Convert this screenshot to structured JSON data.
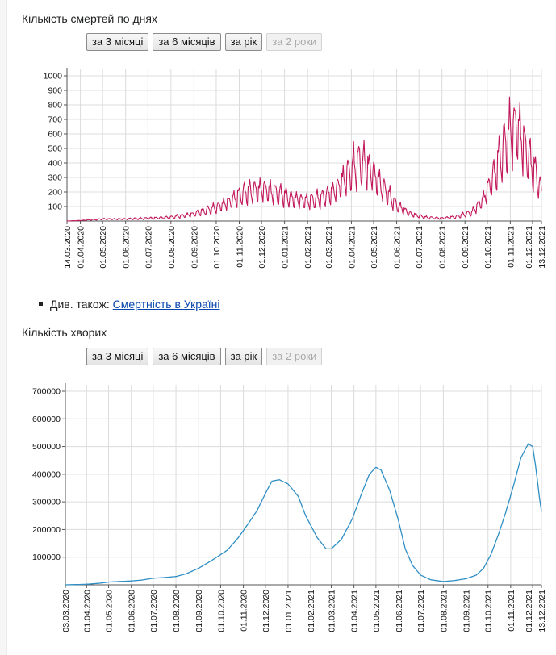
{
  "links": {
    "see_also_prefix": "Див. також:",
    "see_also_link": "Смертність в Україні"
  },
  "buttons": [
    "за 3 місяці",
    "за 6 місяців",
    "за рік",
    "за 2 роки"
  ],
  "colors": {
    "deaths": "#c2185b",
    "cases": "#2f8fc4",
    "grid": "#dcdcdc",
    "axis": "#555555"
  },
  "chart_data": [
    {
      "type": "line",
      "title": "Кількість смертей по днях",
      "ylim": [
        0,
        1000
      ],
      "yticks": [
        100,
        200,
        300,
        400,
        500,
        600,
        700,
        800,
        900,
        1000
      ],
      "date_start": "2020-03-14",
      "date_end": "2021-12-13",
      "xticks": [
        "14.03.2020",
        "01.04.2020",
        "01.05.2020",
        "01.06.2020",
        "01.07.2020",
        "01.08.2020",
        "01.09.2020",
        "01.10.2020",
        "01.11.2020",
        "01.12.2020",
        "01.01.2021",
        "01.02.2021",
        "01.03.2021",
        "01.04.2021",
        "01.05.2021",
        "01.06.2021",
        "01.07.2021",
        "01.08.2021",
        "01.09.2021",
        "01.10.2021",
        "01.11.2021",
        "01.12.2021",
        "13.12.2021"
      ],
      "trend": [
        [
          "2020-03-14",
          0
        ],
        [
          "2020-04-01",
          4
        ],
        [
          "2020-05-01",
          14
        ],
        [
          "2020-06-01",
          14
        ],
        [
          "2020-07-01",
          20
        ],
        [
          "2020-08-01",
          26
        ],
        [
          "2020-09-01",
          50
        ],
        [
          "2020-10-01",
          95
        ],
        [
          "2020-10-20",
          140
        ],
        [
          "2020-11-05",
          190
        ],
        [
          "2020-11-20",
          215
        ],
        [
          "2020-12-05",
          225
        ],
        [
          "2020-12-20",
          195
        ],
        [
          "2021-01-10",
          160
        ],
        [
          "2021-02-01",
          140
        ],
        [
          "2021-02-20",
          160
        ],
        [
          "2021-03-10",
          215
        ],
        [
          "2021-03-25",
          310
        ],
        [
          "2021-04-08",
          400
        ],
        [
          "2021-04-18",
          410
        ],
        [
          "2021-05-01",
          330
        ],
        [
          "2021-05-15",
          220
        ],
        [
          "2021-06-01",
          110
        ],
        [
          "2021-06-20",
          50
        ],
        [
          "2021-07-10",
          25
        ],
        [
          "2021-08-01",
          20
        ],
        [
          "2021-08-20",
          30
        ],
        [
          "2021-09-10",
          60
        ],
        [
          "2021-09-25",
          150
        ],
        [
          "2021-10-10",
          320
        ],
        [
          "2021-10-20",
          470
        ],
        [
          "2021-11-01",
          620
        ],
        [
          "2021-11-10",
          680
        ],
        [
          "2021-11-20",
          520
        ],
        [
          "2021-12-01",
          380
        ],
        [
          "2021-12-10",
          260
        ],
        [
          "2021-12-13",
          190
        ]
      ]
    },
    {
      "type": "line",
      "title": "Кількість хворих",
      "ylim": [
        0,
        700000
      ],
      "yticks": [
        100000,
        200000,
        300000,
        400000,
        500000,
        600000,
        700000
      ],
      "date_start": "2020-03-03",
      "date_end": "2021-12-13",
      "xticks": [
        "03.03.2020",
        "01.04.2020",
        "01.05.2020",
        "01.06.2020",
        "01.07.2020",
        "01.08.2020",
        "01.09.2020",
        "01.10.2020",
        "01.11.2020",
        "01.12.2020",
        "01.01.2021",
        "01.02.2021",
        "01.03.2021",
        "01.04.2021",
        "01.05.2021",
        "01.06.2021",
        "01.07.2021",
        "01.08.2021",
        "01.09.2021",
        "01.10.2021",
        "01.11.2021",
        "01.12.2021",
        "13.12.2021"
      ],
      "points": [
        [
          "2020-03-03",
          0
        ],
        [
          "2020-04-01",
          2000
        ],
        [
          "2020-04-20",
          6000
        ],
        [
          "2020-05-01",
          10000
        ],
        [
          "2020-05-15",
          12000
        ],
        [
          "2020-06-01",
          14000
        ],
        [
          "2020-06-15",
          17000
        ],
        [
          "2020-07-01",
          24000
        ],
        [
          "2020-07-15",
          26000
        ],
        [
          "2020-08-01",
          30000
        ],
        [
          "2020-08-15",
          40000
        ],
        [
          "2020-09-01",
          60000
        ],
        [
          "2020-09-20",
          90000
        ],
        [
          "2020-10-10",
          125000
        ],
        [
          "2020-10-25",
          170000
        ],
        [
          "2020-11-10",
          230000
        ],
        [
          "2020-11-20",
          270000
        ],
        [
          "2020-12-01",
          330000
        ],
        [
          "2020-12-10",
          375000
        ],
        [
          "2020-12-20",
          380000
        ],
        [
          "2021-01-01",
          365000
        ],
        [
          "2021-01-15",
          320000
        ],
        [
          "2021-01-25",
          250000
        ],
        [
          "2021-02-10",
          170000
        ],
        [
          "2021-02-22",
          130000
        ],
        [
          "2021-03-01",
          130000
        ],
        [
          "2021-03-15",
          165000
        ],
        [
          "2021-03-30",
          240000
        ],
        [
          "2021-04-10",
          320000
        ],
        [
          "2021-04-22",
          400000
        ],
        [
          "2021-05-01",
          425000
        ],
        [
          "2021-05-08",
          415000
        ],
        [
          "2021-05-20",
          340000
        ],
        [
          "2021-06-01",
          230000
        ],
        [
          "2021-06-10",
          130000
        ],
        [
          "2021-06-20",
          70000
        ],
        [
          "2021-07-01",
          35000
        ],
        [
          "2021-07-15",
          18000
        ],
        [
          "2021-08-01",
          12000
        ],
        [
          "2021-08-15",
          15000
        ],
        [
          "2021-09-01",
          22000
        ],
        [
          "2021-09-15",
          35000
        ],
        [
          "2021-09-25",
          60000
        ],
        [
          "2021-10-05",
          110000
        ],
        [
          "2021-10-15",
          180000
        ],
        [
          "2021-10-25",
          260000
        ],
        [
          "2021-11-05",
          360000
        ],
        [
          "2021-11-15",
          460000
        ],
        [
          "2021-11-25",
          510000
        ],
        [
          "2021-12-01",
          500000
        ],
        [
          "2021-12-05",
          430000
        ],
        [
          "2021-12-10",
          320000
        ],
        [
          "2021-12-13",
          265000
        ]
      ]
    }
  ]
}
